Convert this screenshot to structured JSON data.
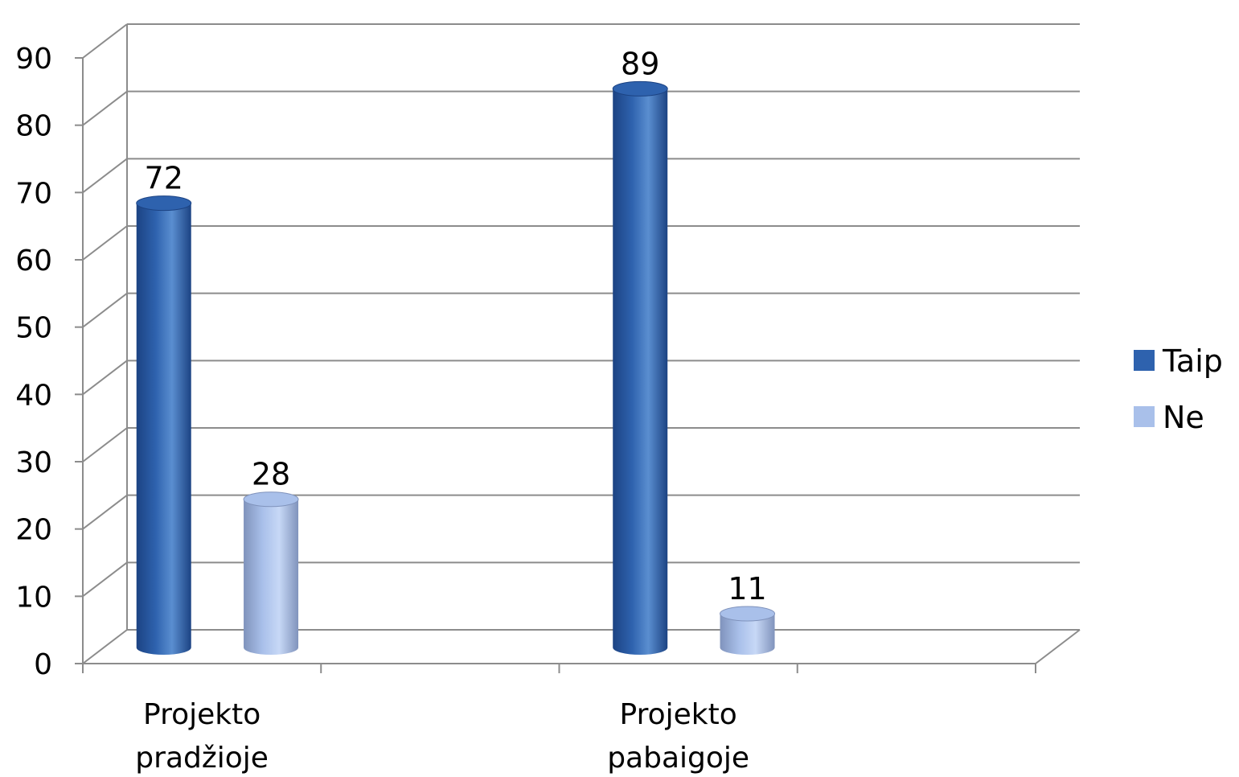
{
  "chart_data": {
    "type": "bar",
    "categories": [
      "Projekto pradžioje",
      "Projekto pabaigoje"
    ],
    "category_lines": [
      [
        "Projekto",
        "pradžioje"
      ],
      [
        "Projekto",
        "pabaigoje"
      ]
    ],
    "series": [
      {
        "name": "Taip",
        "values": [
          72,
          89
        ],
        "color": "#2E62AE",
        "color_dark": "#1C4383",
        "color_light": "#5A8ED0"
      },
      {
        "name": "Ne",
        "values": [
          28,
          11
        ],
        "color": "#A9C0EA",
        "color_dark": "#8093BC",
        "color_light": "#C7D8F6"
      }
    ],
    "ylim": [
      0,
      90
    ],
    "yticks": [
      0,
      10,
      20,
      30,
      40,
      50,
      60,
      70,
      80,
      90
    ],
    "grid": true,
    "legend_position": "right",
    "style": "3d-cylinder",
    "data_labels": true
  }
}
